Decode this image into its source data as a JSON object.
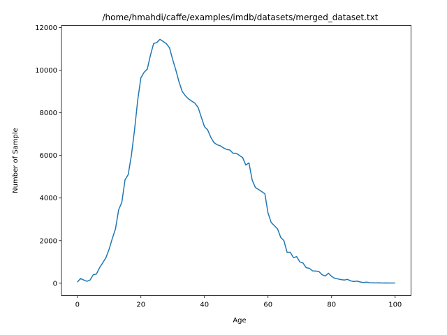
{
  "chart_data": {
    "type": "line",
    "title": "/home/hmahdi/caffe/examples/imdb/datasets/merged_dataset.txt",
    "xlabel": "Age",
    "ylabel": "Number of Sample",
    "xlim": [
      -5,
      105
    ],
    "ylim": [
      -580,
      12100
    ],
    "xticks": [
      0,
      20,
      40,
      60,
      80,
      100
    ],
    "yticks": [
      0,
      2000,
      4000,
      6000,
      8000,
      10000,
      12000
    ],
    "grid": false,
    "line_color": "#1f77b4",
    "series": [
      {
        "x": [
          0,
          1,
          2,
          3,
          4,
          5,
          6,
          7,
          8,
          9,
          10,
          11,
          12,
          13,
          14,
          15,
          16,
          17,
          18,
          19,
          20,
          21,
          22,
          23,
          24,
          25,
          26,
          27,
          28,
          29,
          30,
          31,
          32,
          33,
          34,
          35,
          36,
          37,
          38,
          39,
          40,
          41,
          42,
          43,
          44,
          45,
          46,
          47,
          48,
          49,
          50,
          51,
          52,
          53,
          54,
          55,
          56,
          57,
          58,
          59,
          60,
          61,
          62,
          63,
          64,
          65,
          66,
          67,
          68,
          69,
          70,
          71,
          72,
          73,
          74,
          75,
          76,
          77,
          78,
          79,
          80,
          81,
          82,
          83,
          84,
          85,
          86,
          87,
          88,
          89,
          90,
          91,
          92,
          93,
          94,
          95,
          96,
          97,
          98,
          99,
          100
        ],
        "values": [
          50,
          220,
          150,
          90,
          150,
          400,
          430,
          730,
          960,
          1200,
          1600,
          2100,
          2550,
          3450,
          3800,
          4850,
          5100,
          6000,
          7200,
          8600,
          9650,
          9900,
          10050,
          10700,
          11250,
          11300,
          11450,
          11350,
          11250,
          11050,
          10500,
          10000,
          9450,
          9000,
          8800,
          8650,
          8550,
          8450,
          8250,
          7800,
          7350,
          7200,
          6850,
          6600,
          6500,
          6450,
          6350,
          6280,
          6250,
          6100,
          6100,
          6000,
          5900,
          5550,
          5650,
          4850,
          4500,
          4400,
          4300,
          4200,
          3300,
          2850,
          2700,
          2550,
          2150,
          2000,
          1450,
          1450,
          1200,
          1250,
          1000,
          950,
          730,
          700,
          580,
          570,
          550,
          400,
          340,
          470,
          320,
          230,
          200,
          170,
          150,
          180,
          110,
          80,
          100,
          60,
          30,
          50,
          20,
          20,
          15,
          20,
          10,
          15,
          10,
          10,
          10
        ]
      }
    ]
  }
}
